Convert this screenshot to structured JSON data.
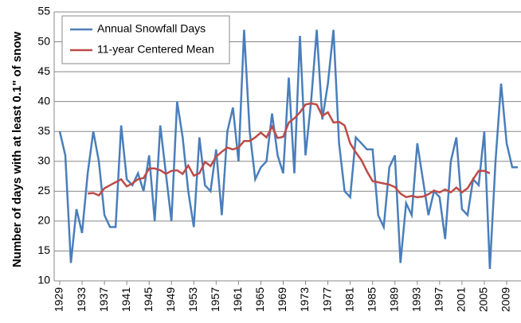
{
  "chart_data": {
    "type": "line",
    "y_label": "Number of days with  at least 0.1\" of snow",
    "x": [
      1929,
      1930,
      1931,
      1932,
      1933,
      1934,
      1935,
      1936,
      1937,
      1938,
      1939,
      1940,
      1941,
      1942,
      1943,
      1944,
      1945,
      1946,
      1947,
      1948,
      1949,
      1950,
      1951,
      1952,
      1953,
      1954,
      1955,
      1956,
      1957,
      1958,
      1959,
      1960,
      1961,
      1962,
      1963,
      1964,
      1965,
      1966,
      1967,
      1968,
      1969,
      1970,
      1971,
      1972,
      1973,
      1974,
      1975,
      1976,
      1977,
      1978,
      1979,
      1980,
      1981,
      1982,
      1983,
      1984,
      1985,
      1986,
      1987,
      1988,
      1989,
      1990,
      1991,
      1992,
      1993,
      1994,
      1995,
      1996,
      1997,
      1998,
      1999,
      2000,
      2001,
      2002,
      2003,
      2004,
      2005,
      2006,
      2007,
      2008,
      2009,
      2010,
      2011
    ],
    "series": [
      {
        "name": "Annual Snowfall Days",
        "color": "#4a7ebb",
        "values": [
          35,
          31,
          13,
          22,
          18,
          28,
          35,
          30,
          21,
          19,
          19,
          36,
          27,
          26,
          28,
          25,
          31,
          20,
          36,
          28,
          20,
          40,
          34,
          25,
          19,
          34,
          26,
          25,
          32,
          21,
          35,
          39,
          30,
          52,
          35,
          27,
          29,
          30,
          38,
          31,
          28,
          44,
          28,
          51,
          31,
          40,
          52,
          37,
          43,
          52,
          33,
          25,
          24,
          34,
          33,
          32,
          32,
          21,
          19,
          29,
          31,
          13,
          23,
          21,
          33,
          27,
          21,
          25,
          24,
          17,
          30,
          34,
          22,
          21,
          27,
          26,
          35,
          12,
          30,
          43,
          33,
          29,
          29
        ]
      },
      {
        "name": "11-year Centered Mean",
        "color": "#be4b48",
        "values": [
          null,
          null,
          null,
          null,
          null,
          24.6,
          24.7,
          24.3,
          25.5,
          26,
          26.5,
          27,
          25.8,
          26.3,
          27,
          27.2,
          28.8,
          28.8,
          28.5,
          27.9,
          28.4,
          28.5,
          27.9,
          29.3,
          27.6,
          28,
          29.9,
          29.2,
          30.8,
          31.6,
          32.3,
          32,
          32.3,
          33.4,
          33.4,
          34,
          34.8,
          34,
          35.8,
          33.9,
          34.1,
          36.5,
          37.2,
          38.2,
          39.5,
          39.7,
          39.5,
          37.6,
          38.2,
          36.5,
          36.6,
          36,
          33,
          31.5,
          30.2,
          28.3,
          26.7,
          26.5,
          26.3,
          26.1,
          25.7,
          24.6,
          24,
          24.2,
          24,
          24.1,
          24.5,
          25.1,
          24.8,
          25.3,
          24.8,
          25.6,
          24.8,
          25.5,
          27,
          28.4,
          28.4,
          28,
          null,
          null,
          null,
          null,
          null
        ]
      }
    ],
    "xlim": [
      1929,
      2011
    ],
    "xticks": [
      1929,
      1933,
      1937,
      1941,
      1945,
      1949,
      1953,
      1957,
      1961,
      1965,
      1969,
      1973,
      1977,
      1981,
      1985,
      1989,
      1993,
      1997,
      2001,
      2005,
      2009
    ],
    "ylim": [
      10,
      55
    ],
    "yticks": [
      10,
      15,
      20,
      25,
      30,
      35,
      40,
      45,
      50,
      55
    ],
    "grid": true,
    "legend": "upper-left"
  }
}
